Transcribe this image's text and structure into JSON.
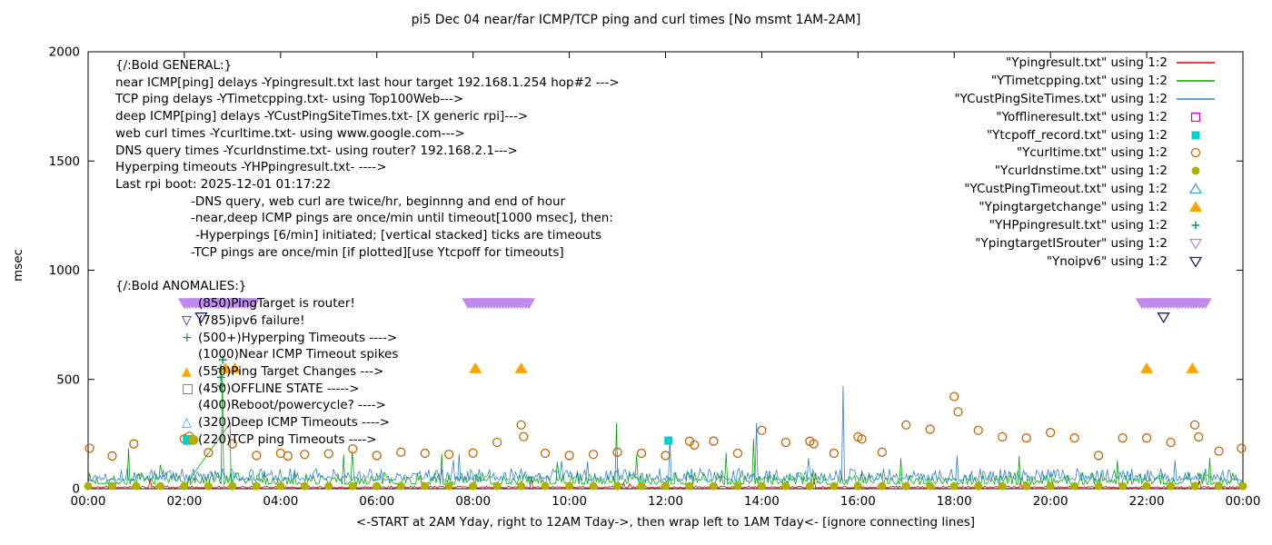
{
  "title": "pi5 Dec 04  near/far ICMP/TCP ping and curl times [No msmt 1AM-2AM]",
  "chart_data": {
    "type": "line",
    "title": "pi5 Dec 04  near/far ICMP/TCP ping and curl times [No msmt 1AM-2AM]",
    "xlabel": "<-START at 2AM Yday, right to 12AM Tday->, then wrap left to 1AM Tday<- [ignore connecting lines]",
    "ylabel": "msec",
    "ylim": [
      0,
      2000
    ],
    "x_hours": [
      0,
      24
    ],
    "yticks": [
      0,
      500,
      1000,
      1500,
      2000
    ],
    "xticks": [
      "00:00",
      "02:00",
      "04:00",
      "06:00",
      "08:00",
      "10:00",
      "12:00",
      "14:00",
      "16:00",
      "18:00",
      "20:00",
      "22:00",
      "00:00"
    ],
    "noise_lines": [
      {
        "name": "Ypingresult",
        "color": "#dd0000",
        "seed": 3,
        "base": 4,
        "amp": 8,
        "spikes": [
          [
            9.2,
            55
          ],
          [
            15.1,
            45
          ]
        ]
      },
      {
        "name": "YTimetcpping",
        "color": "#00a800",
        "seed": 7,
        "base": 20,
        "amp": 55,
        "spikes": [
          [
            0.85,
            185
          ],
          [
            2.78,
            520
          ],
          [
            5.3,
            155
          ],
          [
            7.35,
            160
          ],
          [
            10.98,
            300
          ],
          [
            13.25,
            165
          ],
          [
            16.9,
            140
          ],
          [
            19.35,
            150
          ],
          [
            21.4,
            130
          ],
          [
            23.3,
            140
          ]
        ]
      },
      {
        "name": "YCustPingSiteTimes",
        "color": "#3080d0",
        "seed": 13,
        "base": 38,
        "amp": 55,
        "spikes": [
          [
            7.7,
            160
          ],
          [
            12.1,
            240
          ],
          [
            15.68,
            470
          ],
          [
            18.05,
            150
          ],
          [
            22.6,
            130
          ]
        ]
      }
    ],
    "extra_lines": [
      {
        "name": "connecting-line-artifact",
        "color": "#00a800",
        "points": [
          [
            2.05,
            25
          ],
          [
            2.95,
            300
          ],
          [
            2.97,
            30
          ]
        ]
      }
    ],
    "scatter": [
      {
        "name": "YpingtargetISrouter",
        "marker": "tri-down-fill",
        "color": "#c08aee",
        "band_step": 0.06,
        "band_value": 850,
        "bands": [
          [
            2.0,
            3.45
          ],
          [
            7.9,
            9.2
          ],
          [
            21.9,
            23.25
          ]
        ]
      },
      {
        "name": "Ynoipv6",
        "marker": "tri-down-open",
        "color": "#202070",
        "points": [
          [
            2.35,
            785
          ],
          [
            22.35,
            785
          ]
        ]
      },
      {
        "name": "Ycurltime",
        "marker": "circle-open",
        "color": "#c86400",
        "points": [
          [
            0.03,
            185
          ],
          [
            0.5,
            150
          ],
          [
            0.95,
            205
          ],
          [
            2.0,
            228
          ],
          [
            2.1,
            240
          ],
          [
            2.5,
            165
          ],
          [
            3.0,
            205
          ],
          [
            3.5,
            152
          ],
          [
            4.0,
            162
          ],
          [
            4.15,
            150
          ],
          [
            4.5,
            157
          ],
          [
            5.0,
            160
          ],
          [
            5.5,
            182
          ],
          [
            6.0,
            152
          ],
          [
            6.5,
            167
          ],
          [
            7.0,
            162
          ],
          [
            7.5,
            157
          ],
          [
            8.0,
            163
          ],
          [
            8.5,
            212
          ],
          [
            9.0,
            292
          ],
          [
            9.05,
            238
          ],
          [
            9.5,
            162
          ],
          [
            10.0,
            152
          ],
          [
            10.5,
            157
          ],
          [
            11.0,
            167
          ],
          [
            11.5,
            162
          ],
          [
            12.0,
            152
          ],
          [
            12.5,
            217
          ],
          [
            12.6,
            200
          ],
          [
            13.0,
            218
          ],
          [
            13.5,
            162
          ],
          [
            14.0,
            267
          ],
          [
            14.5,
            212
          ],
          [
            15.0,
            217
          ],
          [
            15.08,
            205
          ],
          [
            15.5,
            162
          ],
          [
            16.0,
            237
          ],
          [
            16.08,
            227
          ],
          [
            16.5,
            167
          ],
          [
            17.0,
            292
          ],
          [
            17.5,
            272
          ],
          [
            18.0,
            422
          ],
          [
            18.08,
            352
          ],
          [
            18.5,
            267
          ],
          [
            19.0,
            237
          ],
          [
            19.5,
            232
          ],
          [
            20.0,
            257
          ],
          [
            20.5,
            232
          ],
          [
            21.0,
            152
          ],
          [
            21.5,
            232
          ],
          [
            22.0,
            232
          ],
          [
            22.5,
            212
          ],
          [
            23.0,
            292
          ],
          [
            23.08,
            237
          ],
          [
            23.5,
            172
          ],
          [
            23.97,
            185
          ]
        ]
      },
      {
        "name": "Ycurldnstime",
        "marker": "circle-fill",
        "color": "#b0b000",
        "range": [
          0,
          24,
          0.5
        ],
        "range_value": 12
      },
      {
        "name": "Ypingtargetchange",
        "marker": "tri-up-fill",
        "color": "#ffa500",
        "points": [
          [
            2.85,
            550
          ],
          [
            3.05,
            550
          ],
          [
            8.05,
            550
          ],
          [
            9.0,
            550
          ],
          [
            22.0,
            550
          ],
          [
            22.95,
            550
          ]
        ]
      },
      {
        "name": "YHPpingresult",
        "marker": "plus",
        "color": "#009955",
        "points": [
          [
            2.76,
            470
          ],
          [
            2.76,
            510
          ],
          [
            2.76,
            550
          ],
          [
            2.8,
            590
          ]
        ]
      },
      {
        "name": "Ytcpoff_record",
        "marker": "square-fill",
        "color": "#00d0d0",
        "points": [
          [
            12.06,
            220
          ]
        ]
      },
      {
        "name": "Yofflineresult",
        "marker": "square-open",
        "color": "#e000e0",
        "points": []
      },
      {
        "name": "YCustPingTimeout",
        "marker": "tri-up-open",
        "color": "#40a0e0",
        "points": []
      }
    ]
  },
  "legend": {
    "entries": [
      {
        "label": "\"Ypingresult.txt\" using 1:2",
        "type": "line",
        "color": "#dd0000"
      },
      {
        "label": "\"YTimetcpping.txt\" using 1:2",
        "type": "line",
        "color": "#00a800"
      },
      {
        "label": "\"YCustPingSiteTimes.txt\" using 1:2",
        "type": "line",
        "color": "#3080d0"
      },
      {
        "label": "\"Yofflineresult.txt\" using 1:2",
        "type": "square-open",
        "color": "#e000e0"
      },
      {
        "label": "\"Ytcpoff_record.txt\" using 1:2",
        "type": "square-fill",
        "color": "#00d0d0"
      },
      {
        "label": "\"Ycurltime.txt\" using 1:2",
        "type": "circle-open",
        "color": "#c86400"
      },
      {
        "label": "\"Ycurldnstime.txt\" using 1:2",
        "type": "circle-fill",
        "color": "#b0b000"
      },
      {
        "label": "\"YCustPingTimeout.txt\" using 1:2",
        "type": "tri-up-open",
        "color": "#40a0e0"
      },
      {
        "label": "\"Ypingtargetchange\" using 1:2",
        "type": "tri-up-fill",
        "color": "#ffa500"
      },
      {
        "label": "\"YHPpingresult.txt\" using 1:2",
        "type": "plus",
        "color": "#009955"
      },
      {
        "label": "\"YpingtargetISrouter\" using 1:2",
        "type": "tri-down-open",
        "color": "#c08aee"
      },
      {
        "label": "\"Ynoipv6\" using 1:2",
        "type": "tri-down-open",
        "color": "#202070"
      }
    ]
  },
  "annotations": {
    "general": {
      "heading": "{/:Bold GENERAL:}",
      "lines": [
        {
          "text": "near ICMP[ping] delays -Ypingresult.txt last hour target 192.168.1.254 hop#2 --->",
          "indent": 0
        },
        {
          "text": "TCP ping delays -YTimetcpping.txt- using Top100Web--->",
          "indent": 0
        },
        {
          "text": "deep ICMP[ping] delays -YCustPingSiteTimes.txt- [X generic rpi]--->",
          "indent": 0
        },
        {
          "text": "web curl times -Ycurltime.txt- using www.google.com--->",
          "indent": 0
        },
        {
          "text": "DNS query times -Ycurldnstime.txt- using router? 192.168.2.1--->",
          "indent": 0
        },
        {
          "text": "Hyperping timeouts -YHPpingresult.txt- ---->",
          "indent": 0
        },
        {
          "text": "Last rpi boot: 2025-12-01 01:17:22",
          "indent": 0
        },
        {
          "text": "-DNS query, web curl are twice/hr, beginnng and end of hour",
          "indent": 83
        },
        {
          "text": "-near,deep ICMP pings are once/min until timeout[1000 msec], then:",
          "indent": 83
        },
        {
          "text": "-Hyperpings [6/min] initiated; [vertical stacked] ticks are timeouts",
          "indent": 88
        },
        {
          "text": "-TCP pings are once/min [if plotted][use Ytcpoff for timeouts]",
          "indent": 83
        }
      ]
    },
    "anomalies": {
      "heading": "{/:Bold ANOMALIES:}",
      "items": [
        {
          "markers": [
            {
              "glyph": "▽",
              "color": "#c08aee",
              "name": "tri-down-violet-icon",
              "offset": 0
            }
          ],
          "text": "(850)PingTarget is router!"
        },
        {
          "markers": [
            {
              "glyph": "▽",
              "color": "#202070",
              "name": "tri-down-navy-icon",
              "offset": 0
            }
          ],
          "text": "(785)ipv6 failure!"
        },
        {
          "markers": [
            {
              "glyph": "+",
              "color": "#009955",
              "name": "plus-green-icon",
              "offset": 0
            }
          ],
          "text": "(500+)Hyperping Timeouts ---->"
        },
        {
          "markers": [],
          "text": "(1000)Near ICMP Timeout spikes"
        },
        {
          "markers": [
            {
              "glyph": "▲",
              "color": "#ffa500",
              "name": "tri-up-orange-icon",
              "offset": 0
            }
          ],
          "text": "(550)Ping Target Changes --->"
        },
        {
          "markers": [
            {
              "glyph": "□",
              "color": "#e000e0",
              "name": "square-open-magenta-icon",
              "offset": 0
            }
          ],
          "text": "(450)OFFLINE STATE ----->"
        },
        {
          "markers": [],
          "text": "(400)Reboot/powercycle? ---->"
        },
        {
          "markers": [
            {
              "glyph": "△",
              "color": "#40a0e0",
              "name": "tri-up-open-blue-icon",
              "offset": 0
            }
          ],
          "text": "(320)Deep ICMP Timeouts ---->"
        },
        {
          "markers": [
            {
              "glyph": "■",
              "color": "#00d0d0",
              "name": "square-cyan-icon",
              "offset": 0
            },
            {
              "glyph": "●",
              "color": "#b0b000",
              "name": "circle-olive-icon",
              "offset": 7
            }
          ],
          "text": "(220)TCP ping Timeouts ---->"
        }
      ]
    }
  }
}
